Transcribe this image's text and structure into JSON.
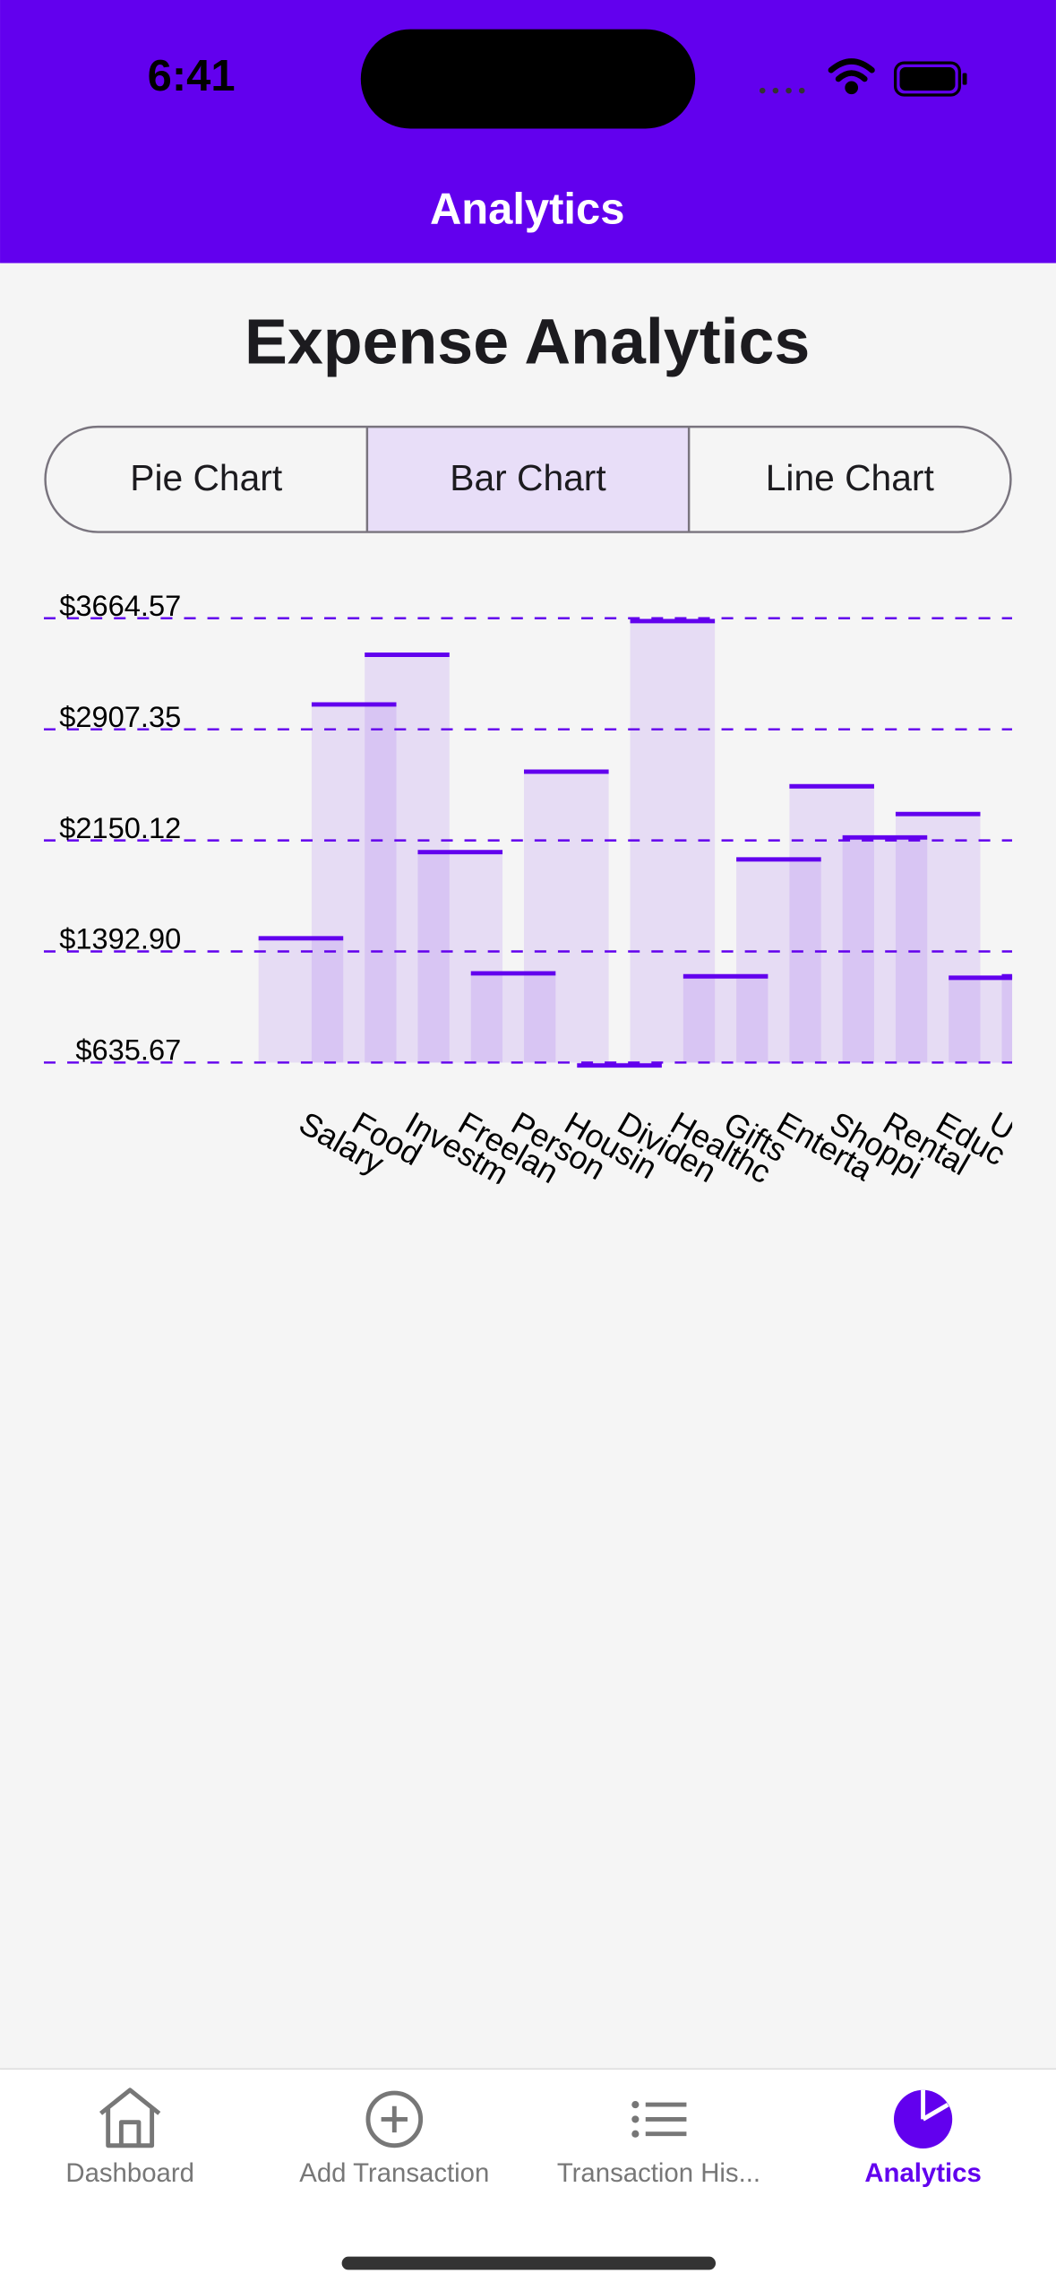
{
  "status_bar": {
    "time": "6:41"
  },
  "header": {
    "title": "Analytics"
  },
  "heading": "Expense Analytics",
  "tabs": [
    "Pie Chart",
    "Bar Chart",
    "Line Chart"
  ],
  "selected_tab": 1,
  "chart_data": {
    "type": "bar",
    "categories": [
      "Salary",
      "Food",
      "Investm",
      "Freelan",
      "Person",
      "Housin",
      "Dividen",
      "Healthc",
      "Gifts",
      "Enterta",
      "Shoppi",
      "Rental",
      "Educ",
      "U",
      null
    ],
    "values": [
      1482.6,
      3076.8,
      3415.6,
      2070.5,
      1243.5,
      2618.5,
      615.7,
      3644.8,
      1223.5,
      2020.7,
      2518.9,
      2170.1,
      2329.6,
      1213.6,
      1223.5
    ],
    "color": "#6200ee",
    "ylim": [
      635.67,
      3664.57
    ],
    "yticks": [
      {
        "value": 635.67,
        "label": "$635.67"
      },
      {
        "value": 1392.9,
        "label": "$1392.90"
      },
      {
        "value": 2150.12,
        "label": "$2150.12"
      },
      {
        "value": 2907.35,
        "label": "$2907.35"
      },
      {
        "value": 3664.57,
        "label": "$3664.57"
      }
    ],
    "grid": true
  },
  "tab_bar": {
    "items": [
      "Dashboard",
      "Add Transaction",
      "Transaction His...",
      "Analytics"
    ],
    "selected": 3
  }
}
